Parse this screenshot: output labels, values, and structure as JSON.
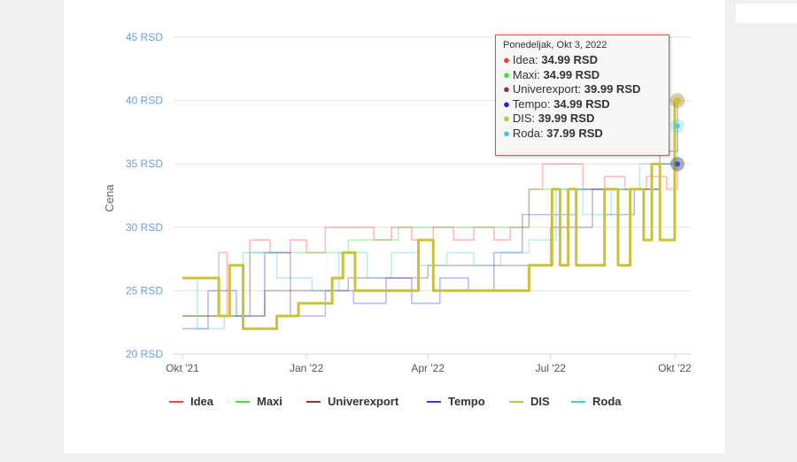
{
  "chart_data": {
    "type": "line",
    "ylabel": "Cena",
    "y_unit": "RSD",
    "ylim": [
      20,
      45
    ],
    "y_ticks": [
      20,
      25,
      30,
      35,
      40,
      45
    ],
    "y_tick_labels": [
      "20 RSD",
      "25 RSD",
      "30 RSD",
      "35 RSD",
      "40 RSD",
      "45 RSD"
    ],
    "xlim": [
      "2021-10-01",
      "2022-10-05"
    ],
    "x_ticks": [
      "2021-10-01",
      "2022-01-01",
      "2022-04-01",
      "2022-07-01",
      "2022-10-01"
    ],
    "x_tick_labels": [
      "Okt '21",
      "Jan '22",
      "Apr '22",
      "Jul '22",
      "Okt '22"
    ],
    "grid": true,
    "legend_position": "bottom",
    "series": [
      {
        "name": "Idea",
        "color": "#ff4040",
        "x": [
          "2021-10-01",
          "2021-10-20",
          "2021-10-28",
          "2021-11-03",
          "2021-11-20",
          "2021-12-05",
          "2021-12-20",
          "2022-01-01",
          "2022-01-15",
          "2022-02-01",
          "2022-02-20",
          "2022-03-05",
          "2022-03-20",
          "2022-04-05",
          "2022-04-20",
          "2022-05-05",
          "2022-05-20",
          "2022-06-01",
          "2022-06-15",
          "2022-06-25",
          "2022-07-10",
          "2022-07-25",
          "2022-08-10",
          "2022-08-25",
          "2022-09-10",
          "2022-09-25",
          "2022-10-03"
        ],
        "y": [
          23,
          23,
          28,
          23,
          29,
          28,
          29,
          28,
          30,
          30,
          29,
          30,
          29,
          30,
          29,
          30,
          29,
          30,
          33,
          35,
          35,
          33,
          34,
          33,
          34,
          33,
          34.99
        ]
      },
      {
        "name": "Maxi",
        "color": "#40dd40",
        "x": [
          "2021-10-01",
          "2021-11-01",
          "2021-11-15",
          "2021-12-01",
          "2021-12-20",
          "2022-01-10",
          "2022-02-01",
          "2022-02-20",
          "2022-03-10",
          "2022-04-01",
          "2022-04-20",
          "2022-05-10",
          "2022-06-01",
          "2022-06-15",
          "2022-07-01",
          "2022-07-20",
          "2022-08-10",
          "2022-09-01",
          "2022-09-20",
          "2022-10-03"
        ],
        "y": [
          23,
          23,
          28,
          28,
          28,
          28,
          29,
          29,
          30,
          30,
          30,
          30,
          30,
          33,
          33,
          33,
          33,
          33,
          35,
          34.99
        ]
      },
      {
        "name": "Univerexport",
        "color": "#8b3a3a",
        "x": [
          "2021-10-01",
          "2021-11-01",
          "2021-12-01",
          "2022-01-01",
          "2022-02-01",
          "2022-03-01",
          "2022-04-01",
          "2022-05-01",
          "2022-06-01",
          "2022-07-01",
          "2022-08-01",
          "2022-09-01",
          "2022-09-20",
          "2022-10-03"
        ],
        "y": [
          23,
          23,
          25,
          25,
          26,
          26,
          27,
          27,
          27,
          30,
          33,
          33,
          36,
          39.99
        ]
      },
      {
        "name": "Tempo",
        "color": "#3a3adb",
        "x": [
          "2021-10-01",
          "2021-10-20",
          "2021-11-10",
          "2021-12-01",
          "2021-12-20",
          "2022-01-15",
          "2022-02-05",
          "2022-03-01",
          "2022-03-20",
          "2022-04-10",
          "2022-05-01",
          "2022-05-20",
          "2022-06-10",
          "2022-07-01",
          "2022-07-20",
          "2022-08-10",
          "2022-09-01",
          "2022-09-20",
          "2022-10-03"
        ],
        "y": [
          22,
          25,
          23,
          28,
          23,
          25,
          24,
          26,
          24,
          26,
          25,
          28,
          31,
          31,
          33,
          31,
          33,
          35,
          34.99
        ]
      },
      {
        "name": "DIS",
        "color": "#c9c33a",
        "x": [
          "2021-10-01",
          "2021-10-15",
          "2021-10-28",
          "2021-11-05",
          "2021-11-15",
          "2021-12-10",
          "2021-12-26",
          "2022-01-02",
          "2022-01-20",
          "2022-01-28",
          "2022-02-06",
          "2022-03-01",
          "2022-03-20",
          "2022-03-25",
          "2022-04-05",
          "2022-04-20",
          "2022-05-10",
          "2022-05-30",
          "2022-06-15",
          "2022-06-22",
          "2022-07-02",
          "2022-07-08",
          "2022-07-14",
          "2022-07-20",
          "2022-08-05",
          "2022-08-10",
          "2022-08-20",
          "2022-08-29",
          "2022-09-03",
          "2022-09-08",
          "2022-09-14",
          "2022-09-20",
          "2022-09-26",
          "2022-10-01",
          "2022-10-03"
        ],
        "y": [
          26,
          26,
          23,
          27,
          22,
          23,
          24,
          24,
          26,
          28,
          25,
          25,
          25,
          29,
          25,
          25,
          25,
          25,
          27,
          27,
          33,
          27,
          33,
          27,
          27,
          33,
          27,
          33,
          33,
          29,
          35,
          29,
          29,
          40,
          39.99
        ]
      },
      {
        "name": "Roda",
        "color": "#40c8d8",
        "x": [
          "2021-10-01",
          "2021-10-12",
          "2021-11-01",
          "2021-11-20",
          "2021-12-10",
          "2022-01-05",
          "2022-01-25",
          "2022-02-15",
          "2022-03-05",
          "2022-03-25",
          "2022-04-15",
          "2022-05-05",
          "2022-05-25",
          "2022-06-15",
          "2022-07-05",
          "2022-07-25",
          "2022-08-15",
          "2022-09-05",
          "2022-09-20",
          "2022-10-03"
        ],
        "y": [
          26,
          22,
          23,
          28,
          26,
          25,
          28,
          26,
          28,
          27,
          28,
          27,
          28,
          29,
          33,
          31,
          33,
          35,
          35,
          37.99
        ]
      }
    ],
    "tooltip": {
      "date_label": "Ponedeljak, Okt 3, 2022",
      "rows": [
        {
          "name": "Idea",
          "value": "34.99 RSD",
          "color": "#ff3b3b"
        },
        {
          "name": "Maxi",
          "value": "34.99 RSD",
          "color": "#33ee33"
        },
        {
          "name": "Univerexport",
          "value": "39.99 RSD",
          "color": "#8b3a3a"
        },
        {
          "name": "Tempo",
          "value": "34.99 RSD",
          "color": "#2222ee"
        },
        {
          "name": "DIS",
          "value": "39.99 RSD",
          "color": "#c9c33a"
        },
        {
          "name": "Roda",
          "value": "37.99 RSD",
          "color": "#40c8d8"
        }
      ]
    }
  }
}
